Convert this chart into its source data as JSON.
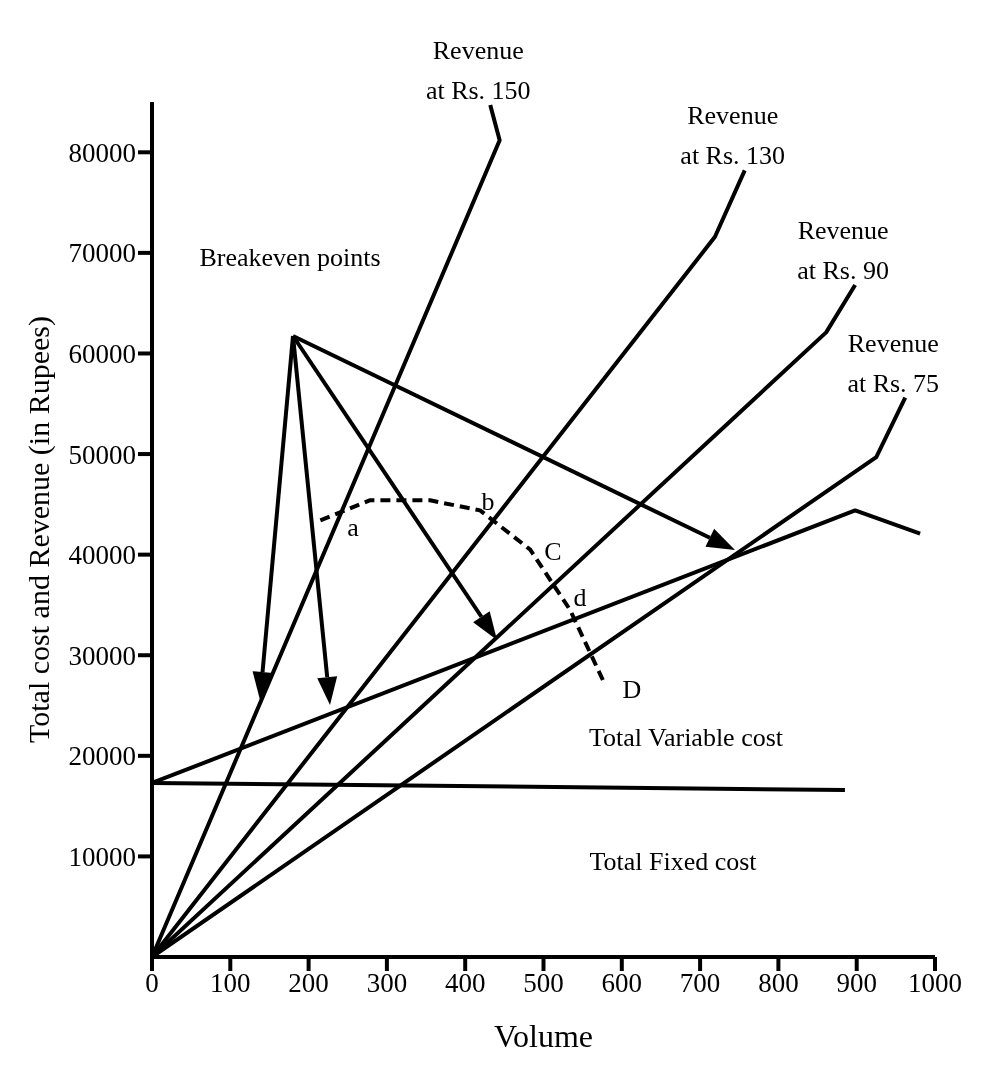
{
  "chart_data": {
    "type": "line",
    "xlabel": "Volume",
    "ylabel": "Total cost and Revenue (in Rupees)",
    "xlim": [
      0,
      1000
    ],
    "xticks": [
      0,
      100,
      200,
      300,
      400,
      500,
      600,
      700,
      800,
      900,
      1000
    ],
    "ylim": [
      0,
      85000
    ],
    "yticks": [
      10000,
      20000,
      30000,
      40000,
      50000,
      60000,
      70000,
      80000
    ],
    "marker": "none",
    "series": [
      {
        "name": "Revenue at Rs. 150",
        "color": "#000000",
        "x": [
          0,
          444,
          432
        ],
        "values": [
          0,
          81200,
          84700
        ]
      },
      {
        "name": "Revenue at Rs. 130",
        "color": "#000000",
        "x": [
          0,
          719,
          757
        ],
        "values": [
          0,
          71600,
          78200
        ]
      },
      {
        "name": "Revenue at Rs. 90",
        "color": "#000000",
        "x": [
          0,
          861,
          898
        ],
        "values": [
          0,
          62100,
          66800
        ]
      },
      {
        "name": "Revenue at Rs. 75",
        "color": "#000000",
        "x": [
          0,
          925,
          962
        ],
        "values": [
          0,
          49700,
          55600
        ]
      },
      {
        "color": "#000000",
        "x": [
          0,
          898,
          981
        ],
        "values": [
          17300,
          44400,
          42100
        ]
      },
      {
        "color": "#000000",
        "x": [
          0,
          885
        ],
        "values": [
          17300,
          16600
        ]
      },
      {
        "color": "#000000",
        "line_style": "dashed",
        "x": [
          215,
          278,
          355,
          419,
          483,
          534,
          579
        ],
        "values": [
          43400,
          45400,
          45400,
          44400,
          40500,
          34500,
          27000
        ]
      }
    ],
    "annotations": [
      "Breakeven points",
      "a",
      "b",
      "C",
      "d",
      "D",
      "Total Variable cost",
      "Total Fixed  cost"
    ]
  }
}
